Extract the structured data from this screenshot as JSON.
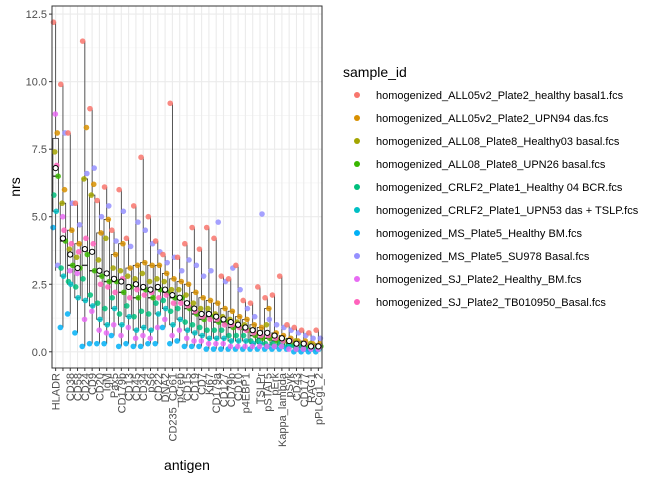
{
  "chart_data": {
    "type": "box",
    "xlabel": "antigen",
    "ylabel": "nrs",
    "ylim": [
      -0.6,
      12.8
    ],
    "yticks": [
      0.0,
      2.5,
      5.0,
      7.5,
      10.0,
      12.5
    ],
    "ytick_labels": [
      "0.0",
      "2.5",
      "5.0",
      "7.5",
      "10.0",
      "12.5"
    ],
    "grid": true,
    "legend_position": "right",
    "legend_title": "sample_id",
    "series": [
      {
        "name": "homogenized_ALL05v2_Plate2_healthy basal1.fcs",
        "color": "#F8766D"
      },
      {
        "name": "homogenized_ALL05v2_Plate2_UPN94 das.fcs",
        "color": "#D89000"
      },
      {
        "name": "homogenized_ALL08_Plate8_Healthy03 basal.fcs",
        "color": "#A3A500"
      },
      {
        "name": "homogenized_ALL08_Plate8_UPN26 basal.fcs",
        "color": "#39B600"
      },
      {
        "name": "homogenized_CRLF2_Plate1_Healthy 04 BCR.fcs",
        "color": "#00BF7D"
      },
      {
        "name": "homogenized_CRLF2_Plate1_UPN53 das + TSLP.fcs",
        "color": "#00BFC4"
      },
      {
        "name": "homogenized_MS_Plate5_Healthy BM.fcs",
        "color": "#00B0F6"
      },
      {
        "name": "homogenized_MS_Plate5_SU978 Basal.fcs",
        "color": "#9590FF"
      },
      {
        "name": "homogenized_SJ_Plate2_Healthy_BM.fcs",
        "color": "#E76BF3"
      },
      {
        "name": "homogenized_SJ_Plate2_TB010950_Basal.fcs",
        "color": "#FF62BC"
      }
    ],
    "categories": [
      {
        "label": "HLADR",
        "q1": 5.2,
        "median": 6.5,
        "q3": 7.9,
        "low": 3.0,
        "high": 12.2,
        "mean": 6.8,
        "points": [
          12.2,
          8.1,
          7.4,
          6.5,
          5.8,
          5.2,
          4.6,
          3.2,
          8.8,
          6.9
        ]
      },
      {
        "label": "",
        "q1": 2.8,
        "median": 4.1,
        "q3": 5.5,
        "low": 0.9,
        "high": 9.9,
        "mean": 4.2,
        "points": [
          9.9,
          6.0,
          5.5,
          4.1,
          3.1,
          2.8,
          0.9,
          8.1,
          5.0,
          4.5
        ]
      },
      {
        "label": "CD38",
        "q1": 2.5,
        "median": 3.2,
        "q3": 4.5,
        "low": 1.4,
        "high": 8.1,
        "mean": 3.6,
        "points": [
          8.1,
          4.5,
          3.8,
          3.2,
          2.6,
          2.5,
          1.4,
          5.5,
          3.0,
          4.0
        ]
      },
      {
        "label": "CD58",
        "q1": 2.0,
        "median": 3.1,
        "q3": 4.0,
        "low": 0.7,
        "high": 5.5,
        "mean": 3.1,
        "points": [
          5.5,
          4.0,
          3.5,
          3.1,
          2.4,
          2.0,
          0.7,
          4.7,
          2.9,
          3.7
        ]
      },
      {
        "label": "CD24",
        "q1": 1.9,
        "median": 3.2,
        "q3": 6.4,
        "low": 0.2,
        "high": 11.5,
        "mean": 3.8,
        "points": [
          11.5,
          8.3,
          6.4,
          3.6,
          2.7,
          1.9,
          0.2,
          6.6,
          1.2,
          4.2
        ]
      },
      {
        "label": "CD9",
        "q1": 1.7,
        "median": 3.0,
        "q3": 5.8,
        "low": 0.3,
        "high": 9.0,
        "mean": 3.7,
        "points": [
          9.0,
          6.2,
          5.8,
          3.0,
          2.1,
          1.7,
          0.3,
          6.8,
          1.5,
          4.0
        ]
      },
      {
        "label": "CD20",
        "q1": 1.2,
        "median": 2.8,
        "q3": 4.4,
        "low": 0.3,
        "high": 5.6,
        "mean": 3.0,
        "points": [
          5.6,
          4.4,
          3.4,
          2.8,
          1.8,
          1.2,
          0.3,
          5.0,
          0.8,
          2.5
        ]
      },
      {
        "label": "IgM",
        "q1": 1.0,
        "median": 2.6,
        "q3": 4.9,
        "low": 0.3,
        "high": 6.1,
        "mean": 2.9,
        "points": [
          6.1,
          4.9,
          4.2,
          2.6,
          1.6,
          1.0,
          0.3,
          5.4,
          0.7,
          2.4
        ]
      },
      {
        "label": "Pax5",
        "q1": 1.6,
        "median": 2.6,
        "q3": 3.6,
        "low": 0.6,
        "high": 4.5,
        "mean": 2.7,
        "points": [
          4.5,
          3.6,
          3.1,
          2.6,
          2.0,
          1.6,
          0.6,
          4.1,
          1.0,
          2.2
        ]
      },
      {
        "label": "CD179b",
        "q1": 1.0,
        "median": 2.2,
        "q3": 4.0,
        "low": 0.2,
        "high": 6.0,
        "mean": 2.6,
        "points": [
          6.0,
          4.0,
          3.0,
          2.2,
          1.4,
          1.0,
          0.2,
          5.2,
          0.6,
          2.7
        ]
      },
      {
        "label": "CD13",
        "q1": 1.3,
        "median": 2.4,
        "q3": 3.1,
        "low": 0.3,
        "high": 4.2,
        "mean": 2.4,
        "points": [
          4.2,
          3.1,
          2.8,
          2.4,
          1.7,
          1.3,
          0.3,
          3.9,
          0.9,
          2.0
        ]
      },
      {
        "label": "CD45",
        "q1": 0.8,
        "median": 2.0,
        "q3": 3.2,
        "low": 0.2,
        "high": 5.4,
        "mean": 2.5,
        "points": [
          5.4,
          3.2,
          2.7,
          2.0,
          1.3,
          0.8,
          0.2,
          4.8,
          0.5,
          2.3
        ]
      },
      {
        "label": "CD34",
        "q1": 0.9,
        "median": 2.3,
        "q3": 3.3,
        "low": 0.2,
        "high": 7.2,
        "mean": 2.4,
        "points": [
          7.2,
          3.3,
          2.9,
          2.3,
          1.5,
          0.9,
          0.2,
          4.5,
          0.6,
          2.1
        ]
      },
      {
        "label": "pS6",
        "q1": 0.8,
        "median": 2.0,
        "q3": 3.2,
        "low": 0.3,
        "high": 5.0,
        "mean": 2.3,
        "points": [
          5.0,
          3.2,
          2.6,
          2.0,
          1.4,
          0.8,
          0.3,
          4.0,
          0.5,
          2.2
        ]
      },
      {
        "label": "CD22",
        "q1": 1.4,
        "median": 2.3,
        "q3": 3.2,
        "low": 0.3,
        "high": 4.1,
        "mean": 2.4,
        "points": [
          4.1,
          3.2,
          2.7,
          2.3,
          1.8,
          1.4,
          0.3,
          3.7,
          0.9,
          2.0
        ]
      },
      {
        "label": "DNA2",
        "q1": 1.6,
        "median": 2.2,
        "q3": 2.9,
        "low": 0.9,
        "high": 3.6,
        "mean": 2.3,
        "points": [
          3.6,
          2.9,
          2.6,
          2.2,
          1.9,
          1.6,
          0.9,
          3.3,
          1.2,
          2.1
        ]
      },
      {
        "label": "CD235_CD61",
        "q1": 1.0,
        "median": 2.0,
        "q3": 2.7,
        "low": 0.3,
        "high": 9.2,
        "mean": 2.1,
        "points": [
          9.2,
          2.7,
          2.3,
          2.0,
          1.5,
          1.0,
          0.3,
          3.5,
          0.6,
          1.8
        ]
      },
      {
        "label": "pCreb",
        "q1": 1.2,
        "median": 2.0,
        "q3": 2.6,
        "low": 0.4,
        "high": 3.5,
        "mean": 2.0,
        "points": [
          3.5,
          2.6,
          2.3,
          2.0,
          1.6,
          1.2,
          0.4,
          3.0,
          0.8,
          1.8
        ]
      },
      {
        "label": "CD15",
        "q1": 0.8,
        "median": 1.6,
        "q3": 2.5,
        "low": 0.2,
        "high": 4.0,
        "mean": 1.8,
        "points": [
          4.0,
          2.5,
          2.1,
          1.6,
          1.1,
          0.8,
          0.2,
          3.4,
          0.5,
          1.7
        ]
      },
      {
        "label": "CD19",
        "q1": 0.7,
        "median": 1.4,
        "q3": 2.2,
        "low": 0.2,
        "high": 4.6,
        "mean": 1.6,
        "points": [
          4.6,
          2.2,
          1.8,
          1.4,
          1.0,
          0.7,
          0.2,
          3.2,
          0.4,
          1.5
        ]
      },
      {
        "label": "CD7",
        "q1": 0.6,
        "median": 1.2,
        "q3": 2.0,
        "low": 0.2,
        "high": 3.8,
        "mean": 1.4,
        "points": [
          3.8,
          2.0,
          1.6,
          1.2,
          0.9,
          0.6,
          0.2,
          2.8,
          0.4,
          1.3
        ]
      },
      {
        "label": "Ki67",
        "q1": 0.5,
        "median": 1.3,
        "q3": 1.9,
        "low": 0.1,
        "high": 4.6,
        "mean": 1.4,
        "points": [
          4.6,
          1.9,
          1.6,
          1.3,
          0.8,
          0.5,
          0.1,
          3.0,
          0.3,
          1.2
        ]
      },
      {
        "label": "CD179a",
        "q1": 0.5,
        "median": 1.1,
        "q3": 1.8,
        "low": 0.1,
        "high": 4.2,
        "mean": 1.3,
        "points": [
          4.2,
          1.8,
          1.4,
          1.1,
          0.8,
          0.5,
          0.1,
          4.8,
          0.3,
          1.2
        ]
      },
      {
        "label": "CD127",
        "q1": 0.5,
        "median": 1.1,
        "q3": 1.6,
        "low": 0.1,
        "high": 2.8,
        "mean": 1.2,
        "points": [
          2.8,
          1.6,
          1.3,
          1.1,
          0.8,
          0.5,
          0.1,
          2.6,
          0.3,
          1.0
        ]
      },
      {
        "label": "CD79b",
        "q1": 0.4,
        "median": 0.9,
        "q3": 1.5,
        "low": 0.1,
        "high": 2.7,
        "mean": 1.1,
        "points": [
          2.7,
          1.5,
          1.2,
          0.9,
          0.6,
          0.4,
          0.1,
          3.1,
          0.2,
          1.0
        ]
      },
      {
        "label": "CD10",
        "q1": 0.4,
        "median": 0.9,
        "q3": 1.3,
        "low": 0.1,
        "high": 3.2,
        "mean": 1.0,
        "points": [
          3.2,
          1.3,
          1.1,
          0.9,
          0.6,
          0.4,
          0.1,
          2.3,
          0.2,
          0.9
        ]
      },
      {
        "label": "p4EBP1",
        "q1": 0.4,
        "median": 0.8,
        "q3": 1.2,
        "low": 0.1,
        "high": 1.9,
        "mean": 0.9,
        "points": [
          1.9,
          1.2,
          1.0,
          0.8,
          0.6,
          0.4,
          0.1,
          1.6,
          0.2,
          0.8
        ]
      },
      {
        "label": "",
        "q1": 0.3,
        "median": 0.6,
        "q3": 1.0,
        "low": 0.1,
        "high": 1.8,
        "mean": 0.8,
        "points": [
          1.8,
          1.0,
          0.8,
          0.6,
          0.4,
          0.3,
          0.1,
          1.3,
          0.2,
          0.7
        ]
      },
      {
        "label": "TSLPr",
        "q1": 0.3,
        "median": 0.5,
        "q3": 0.9,
        "low": 0.1,
        "high": 2.4,
        "mean": 0.7,
        "points": [
          2.4,
          0.9,
          0.7,
          0.5,
          0.4,
          0.3,
          0.1,
          5.1,
          0.2,
          0.6
        ]
      },
      {
        "label": "pSTAT5",
        "q1": 0.2,
        "median": 0.5,
        "q3": 1.6,
        "low": 0.1,
        "high": 2.0,
        "mean": 0.7,
        "points": [
          2.0,
          1.6,
          1.0,
          0.5,
          0.3,
          0.2,
          0.1,
          1.2,
          0.2,
          0.6
        ]
      },
      {
        "label": "pErk",
        "q1": 0.2,
        "median": 0.4,
        "q3": 0.7,
        "low": 0.1,
        "high": 2.1,
        "mean": 0.6,
        "points": [
          2.1,
          0.7,
          0.6,
          0.4,
          0.3,
          0.2,
          0.1,
          1.0,
          0.2,
          0.5
        ]
      },
      {
        "label": "Kappa_lambda",
        "q1": 0.2,
        "median": 0.4,
        "q3": 0.6,
        "low": 0.1,
        "high": 2.8,
        "mean": 0.5,
        "points": [
          2.8,
          0.6,
          0.5,
          0.4,
          0.3,
          0.2,
          0.1,
          0.9,
          0.2,
          0.4
        ]
      },
      {
        "label": "pSyk",
        "q1": 0.2,
        "median": 0.3,
        "q3": 0.5,
        "low": 0.1,
        "high": 1.0,
        "mean": 0.4,
        "points": [
          1.0,
          0.5,
          0.4,
          0.3,
          0.2,
          0.2,
          0.1,
          0.8,
          0.1,
          0.4
        ]
      },
      {
        "label": "CD43",
        "q1": 0.1,
        "median": 0.3,
        "q3": 0.4,
        "low": 0.0,
        "high": 0.9,
        "mean": 0.3,
        "points": [
          0.9,
          0.4,
          0.4,
          0.3,
          0.2,
          0.1,
          0.0,
          0.7,
          0.1,
          0.3
        ]
      },
      {
        "label": "CD177",
        "q1": 0.1,
        "median": 0.2,
        "q3": 0.4,
        "low": 0.0,
        "high": 0.8,
        "mean": 0.3,
        "points": [
          0.8,
          0.4,
          0.3,
          0.2,
          0.2,
          0.1,
          0.0,
          0.6,
          0.1,
          0.3
        ]
      },
      {
        "label": "RAG1",
        "q1": 0.1,
        "median": 0.2,
        "q3": 0.3,
        "low": 0.0,
        "high": 0.7,
        "mean": 0.2,
        "points": [
          0.7,
          0.3,
          0.3,
          0.2,
          0.1,
          0.1,
          0.0,
          0.5,
          0.1,
          0.2
        ]
      },
      {
        "label": "pPLCg1_2",
        "q1": 0.1,
        "median": 0.2,
        "q3": 0.3,
        "low": 0.0,
        "high": 0.8,
        "mean": 0.2,
        "points": [
          0.8,
          0.3,
          0.2,
          0.2,
          0.1,
          0.1,
          0.0,
          0.5,
          0.1,
          0.2
        ]
      }
    ]
  }
}
